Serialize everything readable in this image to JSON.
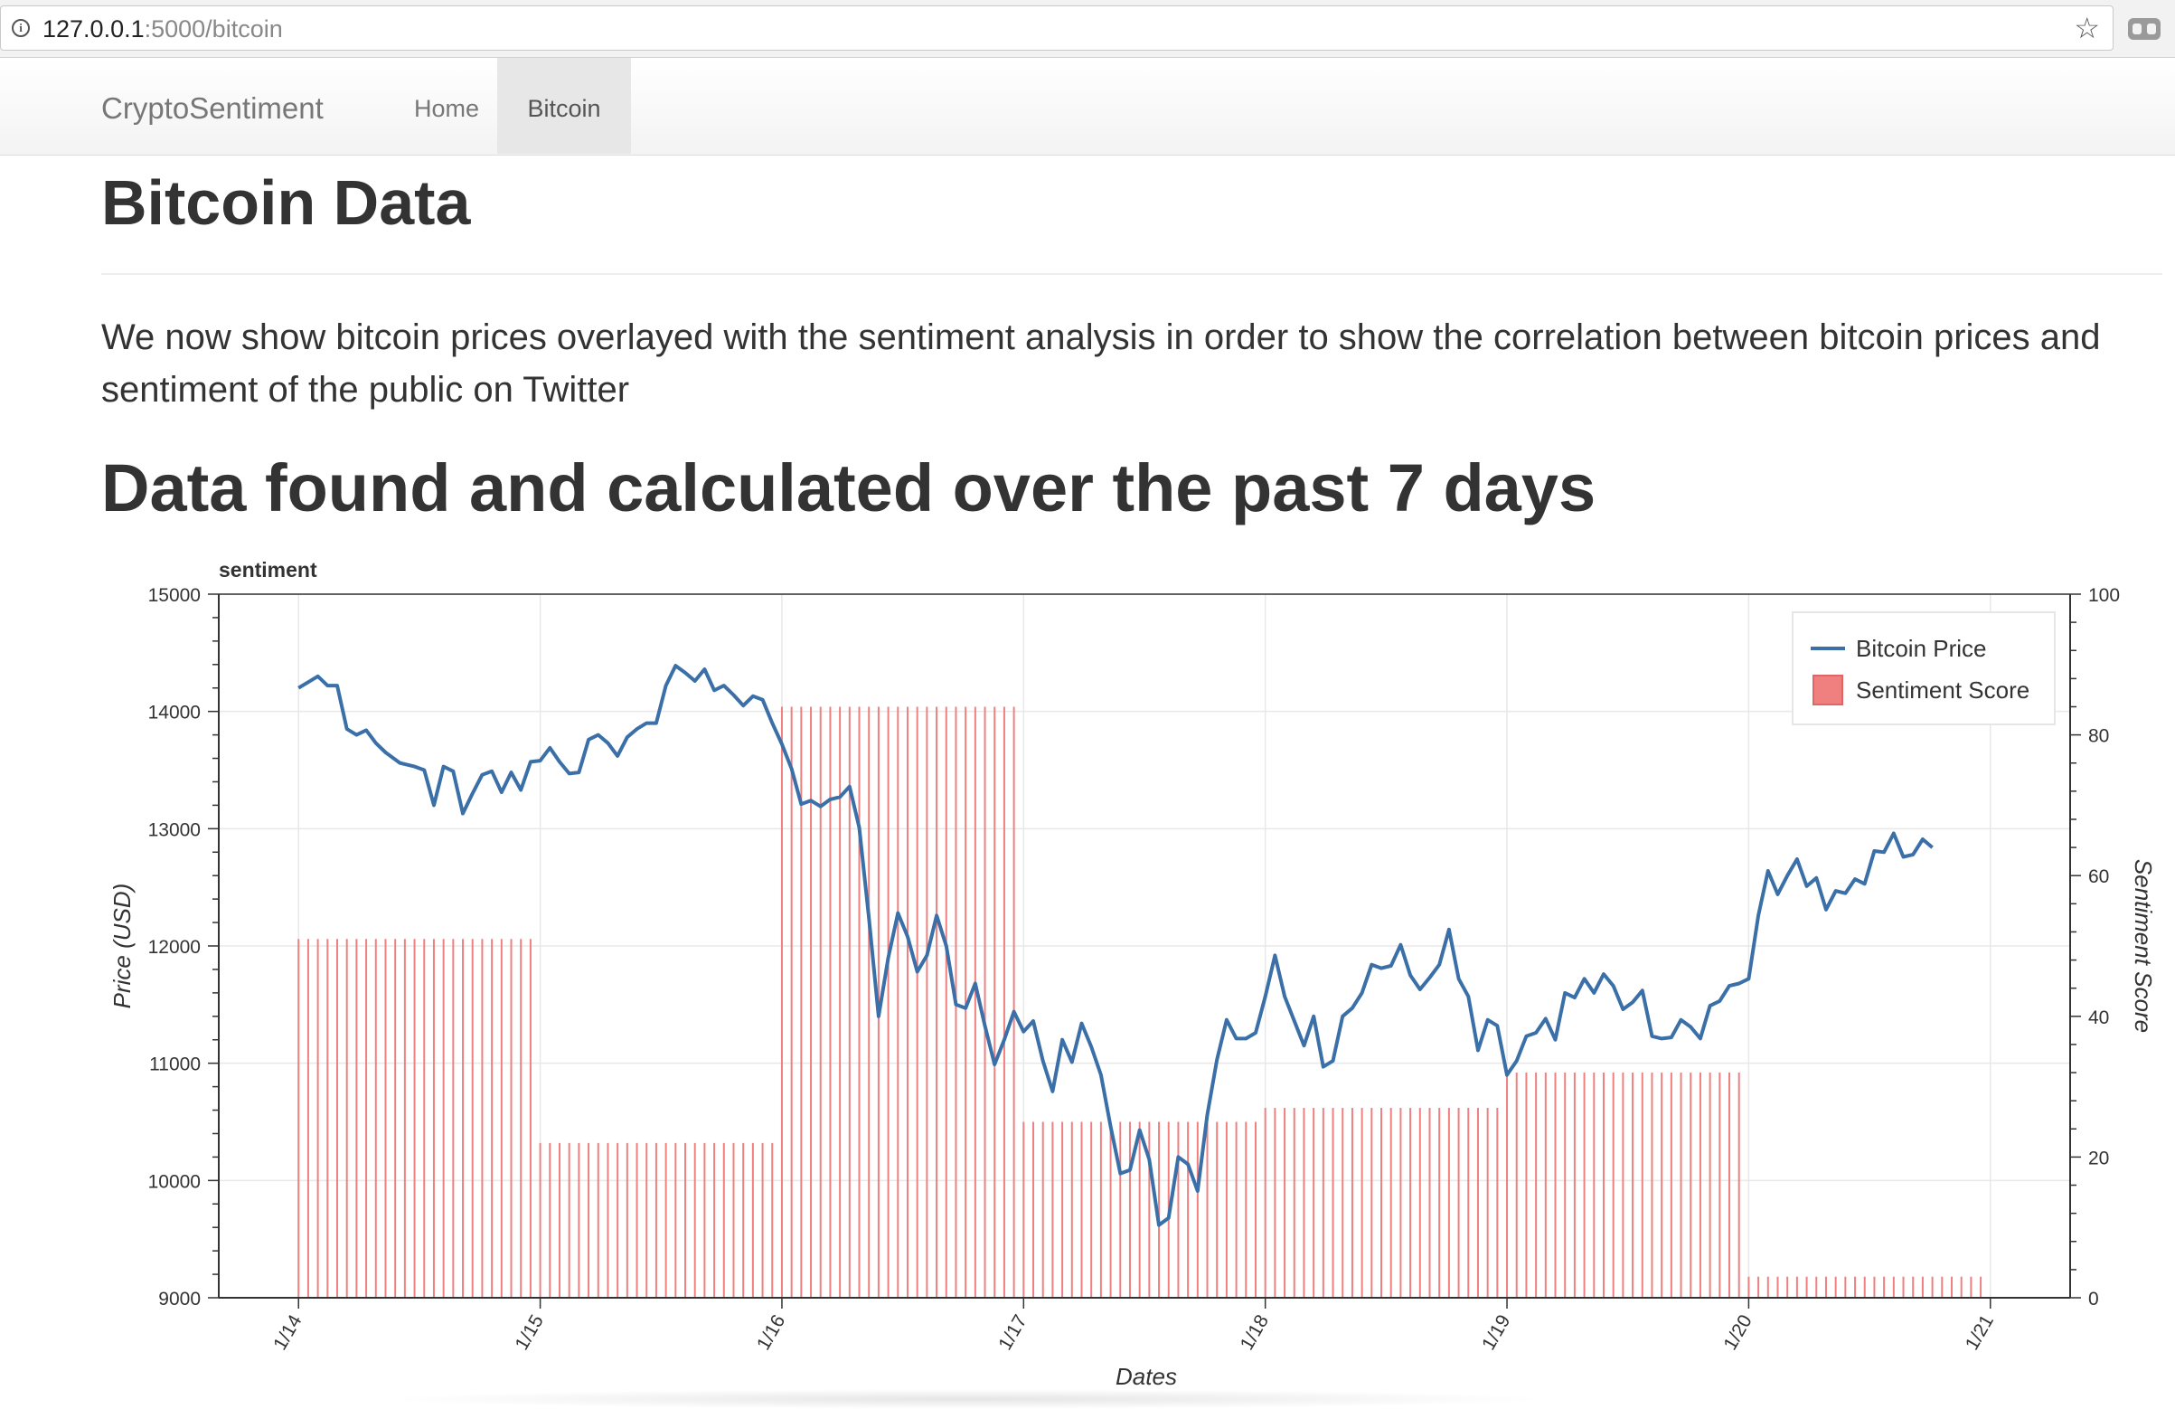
{
  "browser": {
    "url_host": "127.0.0.1",
    "url_path": ":5000/bitcoin",
    "info_icon": "info-icon",
    "star_icon": "bookmark-star-icon",
    "extension_icon": "extension-icon"
  },
  "nav": {
    "brand": "CryptoSentiment",
    "items": [
      {
        "label": "Home",
        "active": false
      },
      {
        "label": "Bitcoin",
        "active": true
      }
    ]
  },
  "page": {
    "title": "Bitcoin Data",
    "lead": "We now show bitcoin prices overlayed with the sentiment analysis in order to show the correlation between bitcoin prices and sentiment of the public on Twitter",
    "subtitle": "Data found and calculated over the past 7 days"
  },
  "chart_data": {
    "type": "line",
    "title": "sentiment",
    "xlabel": "Dates",
    "ylabel": "Price (USD)",
    "y2label": "Sentiment Score",
    "x_ticks": [
      "1/14",
      "1/15",
      "1/16",
      "1/17",
      "1/18",
      "1/19",
      "1/20",
      "1/21"
    ],
    "y_ticks": [
      9000,
      10000,
      11000,
      12000,
      13000,
      14000,
      15000
    ],
    "y2_ticks": [
      0,
      20,
      40,
      60,
      80,
      100
    ],
    "ylim": [
      9000,
      15000
    ],
    "y2lim": [
      0,
      100
    ],
    "xlim": [
      -0.33,
      7.33
    ],
    "grid": true,
    "legend_position": "top-right",
    "colors": {
      "price": "#3a6fa8",
      "sentiment": "#f08080"
    },
    "series": [
      {
        "name": "Bitcoin Price",
        "type": "line",
        "points": [
          [
            0.0,
            14200
          ],
          [
            0.04,
            14250
          ],
          [
            0.08,
            14300
          ],
          [
            0.12,
            14220
          ],
          [
            0.16,
            14220
          ],
          [
            0.2,
            13850
          ],
          [
            0.24,
            13800
          ],
          [
            0.28,
            13840
          ],
          [
            0.32,
            13730
          ],
          [
            0.36,
            13650
          ],
          [
            0.42,
            13560
          ],
          [
            0.48,
            13530
          ],
          [
            0.52,
            13500
          ],
          [
            0.56,
            13200
          ],
          [
            0.6,
            13530
          ],
          [
            0.64,
            13490
          ],
          [
            0.68,
            13130
          ],
          [
            0.72,
            13300
          ],
          [
            0.76,
            13460
          ],
          [
            0.8,
            13490
          ],
          [
            0.84,
            13310
          ],
          [
            0.88,
            13480
          ],
          [
            0.92,
            13330
          ],
          [
            0.96,
            13570
          ],
          [
            1.0,
            13580
          ],
          [
            1.04,
            13690
          ],
          [
            1.08,
            13570
          ],
          [
            1.12,
            13470
          ],
          [
            1.16,
            13480
          ],
          [
            1.2,
            13760
          ],
          [
            1.24,
            13800
          ],
          [
            1.28,
            13730
          ],
          [
            1.32,
            13620
          ],
          [
            1.36,
            13780
          ],
          [
            1.4,
            13850
          ],
          [
            1.44,
            13900
          ],
          [
            1.48,
            13900
          ],
          [
            1.52,
            14220
          ],
          [
            1.56,
            14390
          ],
          [
            1.6,
            14330
          ],
          [
            1.64,
            14260
          ],
          [
            1.68,
            14360
          ],
          [
            1.72,
            14180
          ],
          [
            1.76,
            14220
          ],
          [
            1.8,
            14140
          ],
          [
            1.84,
            14050
          ],
          [
            1.88,
            14130
          ],
          [
            1.92,
            14100
          ],
          [
            1.96,
            13900
          ],
          [
            2.0,
            13720
          ],
          [
            2.04,
            13510
          ],
          [
            2.08,
            13210
          ],
          [
            2.12,
            13240
          ],
          [
            2.16,
            13190
          ],
          [
            2.2,
            13250
          ],
          [
            2.24,
            13270
          ],
          [
            2.28,
            13360
          ],
          [
            2.32,
            13010
          ],
          [
            2.36,
            12240
          ],
          [
            2.4,
            11400
          ],
          [
            2.44,
            11900
          ],
          [
            2.48,
            12280
          ],
          [
            2.52,
            12080
          ],
          [
            2.56,
            11780
          ],
          [
            2.6,
            11920
          ],
          [
            2.64,
            12260
          ],
          [
            2.68,
            12000
          ],
          [
            2.72,
            11500
          ],
          [
            2.76,
            11470
          ],
          [
            2.8,
            11680
          ],
          [
            2.84,
            11320
          ],
          [
            2.88,
            10990
          ],
          [
            2.92,
            11200
          ],
          [
            2.96,
            11440
          ],
          [
            3.0,
            11270
          ],
          [
            3.04,
            11360
          ],
          [
            3.08,
            11020
          ],
          [
            3.12,
            10760
          ],
          [
            3.16,
            11200
          ],
          [
            3.2,
            11010
          ],
          [
            3.24,
            11340
          ],
          [
            3.28,
            11140
          ],
          [
            3.32,
            10900
          ],
          [
            3.36,
            10460
          ],
          [
            3.4,
            10060
          ],
          [
            3.44,
            10090
          ],
          [
            3.48,
            10430
          ],
          [
            3.52,
            10180
          ],
          [
            3.56,
            9620
          ],
          [
            3.6,
            9680
          ],
          [
            3.64,
            10200
          ],
          [
            3.68,
            10140
          ],
          [
            3.72,
            9910
          ],
          [
            3.76,
            10560
          ],
          [
            3.8,
            11030
          ],
          [
            3.84,
            11370
          ],
          [
            3.88,
            11210
          ],
          [
            3.92,
            11210
          ],
          [
            3.96,
            11260
          ],
          [
            4.0,
            11570
          ],
          [
            4.04,
            11920
          ],
          [
            4.08,
            11570
          ],
          [
            4.12,
            11360
          ],
          [
            4.16,
            11150
          ],
          [
            4.2,
            11400
          ],
          [
            4.24,
            10970
          ],
          [
            4.28,
            11020
          ],
          [
            4.32,
            11400
          ],
          [
            4.36,
            11470
          ],
          [
            4.4,
            11600
          ],
          [
            4.44,
            11840
          ],
          [
            4.48,
            11810
          ],
          [
            4.52,
            11830
          ],
          [
            4.56,
            12010
          ],
          [
            4.6,
            11750
          ],
          [
            4.64,
            11630
          ],
          [
            4.68,
            11730
          ],
          [
            4.72,
            11840
          ],
          [
            4.76,
            12140
          ],
          [
            4.8,
            11720
          ],
          [
            4.84,
            11570
          ],
          [
            4.88,
            11110
          ],
          [
            4.92,
            11370
          ],
          [
            4.96,
            11320
          ],
          [
            5.0,
            10900
          ],
          [
            5.04,
            11020
          ],
          [
            5.08,
            11230
          ],
          [
            5.12,
            11260
          ],
          [
            5.16,
            11380
          ],
          [
            5.2,
            11200
          ],
          [
            5.24,
            11600
          ],
          [
            5.28,
            11560
          ],
          [
            5.32,
            11720
          ],
          [
            5.36,
            11600
          ],
          [
            5.4,
            11760
          ],
          [
            5.44,
            11660
          ],
          [
            5.48,
            11460
          ],
          [
            5.52,
            11520
          ],
          [
            5.56,
            11620
          ],
          [
            5.6,
            11230
          ],
          [
            5.64,
            11210
          ],
          [
            5.68,
            11220
          ],
          [
            5.72,
            11370
          ],
          [
            5.76,
            11310
          ],
          [
            5.8,
            11210
          ],
          [
            5.84,
            11490
          ],
          [
            5.88,
            11530
          ],
          [
            5.92,
            11660
          ],
          [
            5.96,
            11680
          ],
          [
            6.0,
            11720
          ],
          [
            6.04,
            12260
          ],
          [
            6.08,
            12640
          ],
          [
            6.12,
            12440
          ],
          [
            6.16,
            12600
          ],
          [
            6.2,
            12740
          ],
          [
            6.24,
            12510
          ],
          [
            6.28,
            12580
          ],
          [
            6.32,
            12310
          ],
          [
            6.36,
            12470
          ],
          [
            6.4,
            12450
          ],
          [
            6.44,
            12570
          ],
          [
            6.48,
            12530
          ],
          [
            6.52,
            12810
          ],
          [
            6.56,
            12800
          ],
          [
            6.6,
            12960
          ],
          [
            6.64,
            12760
          ],
          [
            6.68,
            12780
          ],
          [
            6.72,
            12910
          ],
          [
            6.76,
            12840
          ]
        ]
      },
      {
        "name": "Sentiment Score",
        "type": "bar",
        "segments": [
          {
            "from": 0.0,
            "to": 0.96,
            "value": 51
          },
          {
            "from": 1.0,
            "to": 1.96,
            "value": 22
          },
          {
            "from": 2.0,
            "to": 2.96,
            "value": 84
          },
          {
            "from": 3.0,
            "to": 3.96,
            "value": 25
          },
          {
            "from": 4.0,
            "to": 4.96,
            "value": 27
          },
          {
            "from": 5.0,
            "to": 5.96,
            "value": 32
          },
          {
            "from": 6.0,
            "to": 6.96,
            "value": 3
          }
        ]
      }
    ]
  }
}
